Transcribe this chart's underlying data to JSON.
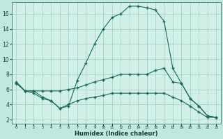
{
  "xlabel": "Humidex (Indice chaleur)",
  "bg_color": "#c0e8e0",
  "plot_bg_color": "#d0f0e8",
  "grid_color": "#a0c8c0",
  "line_color": "#1a6858",
  "xlim": [
    -0.5,
    23.5
  ],
  "ylim": [
    1.5,
    17.5
  ],
  "y_ticks": [
    2,
    4,
    6,
    8,
    10,
    12,
    14,
    16
  ],
  "x_ticks": [
    0,
    1,
    2,
    3,
    4,
    5,
    6,
    7,
    8,
    9,
    10,
    11,
    12,
    13,
    14,
    15,
    16,
    17,
    18,
    19,
    20,
    21,
    22,
    23
  ],
  "line1_x": [
    0,
    1,
    2,
    3,
    4,
    5,
    6,
    7,
    8,
    9,
    10,
    11,
    12,
    13,
    14,
    15,
    16,
    17,
    18,
    19,
    20,
    21,
    22,
    23
  ],
  "line1_y": [
    7.0,
    5.8,
    5.8,
    5.0,
    4.5,
    3.5,
    3.8,
    7.2,
    9.5,
    12.0,
    14.0,
    15.5,
    16.0,
    17.0,
    17.0,
    16.8,
    16.5,
    15.0,
    8.8,
    6.8,
    4.8,
    3.8,
    2.5,
    2.3
  ],
  "line2_x": [
    0,
    1,
    2,
    3,
    4,
    5,
    6,
    7,
    8,
    9,
    10,
    11,
    12,
    13,
    14,
    15,
    16,
    17,
    18,
    19,
    20,
    21,
    22,
    23
  ],
  "line2_y": [
    6.8,
    5.8,
    5.8,
    5.8,
    5.8,
    5.8,
    6.0,
    6.2,
    6.6,
    7.0,
    7.3,
    7.6,
    8.0,
    8.0,
    8.0,
    8.0,
    8.5,
    8.8,
    7.0,
    6.8,
    4.8,
    3.8,
    2.5,
    2.3
  ],
  "line3_x": [
    0,
    1,
    2,
    3,
    4,
    5,
    6,
    7,
    8,
    9,
    10,
    11,
    12,
    13,
    14,
    15,
    16,
    17,
    18,
    19,
    20,
    21,
    22,
    23
  ],
  "line3_y": [
    6.8,
    5.8,
    5.5,
    4.8,
    4.5,
    3.5,
    4.0,
    4.5,
    4.8,
    5.0,
    5.2,
    5.5,
    5.5,
    5.5,
    5.5,
    5.5,
    5.5,
    5.5,
    5.0,
    4.5,
    3.8,
    3.0,
    2.3,
    2.3
  ]
}
